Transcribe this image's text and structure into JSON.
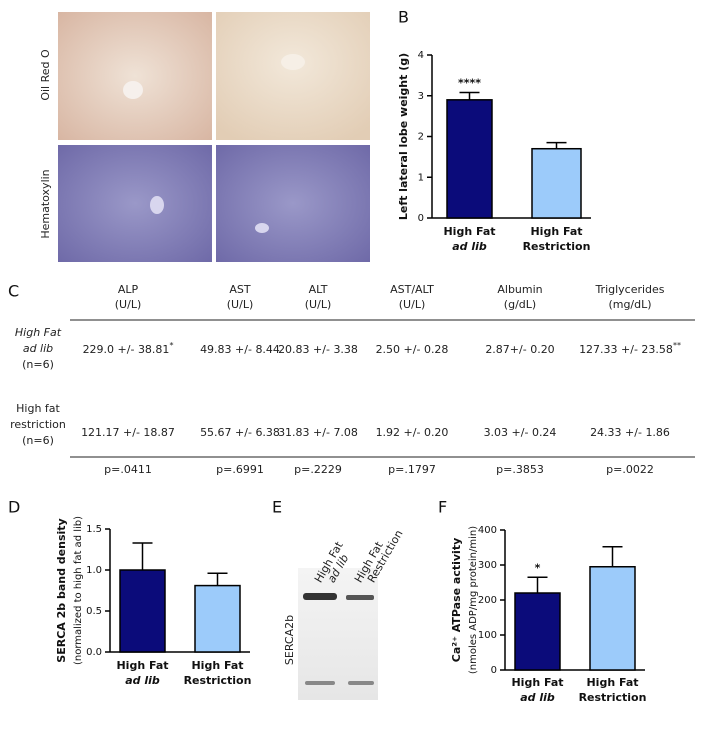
{
  "panels": [
    "B",
    "C",
    "D",
    "E",
    "F"
  ],
  "histology": {
    "rows": [
      "Oil Red O",
      "Hematoxylin"
    ]
  },
  "blot": {
    "lanes": [
      [
        "High Fat",
        "ad lib"
      ],
      [
        "High Fat",
        "Restriction"
      ]
    ],
    "protein": "SERCA2b"
  },
  "table": {
    "columns": [
      [
        "ALP",
        "(U/L)"
      ],
      [
        "AST",
        "(U/L)"
      ],
      [
        "ALT",
        "(U/L)"
      ],
      [
        "AST/ALT",
        "(U/L)"
      ],
      [
        "Albumin",
        "(g/dL)"
      ],
      [
        "Triglycerides",
        "(mg/dL)"
      ]
    ],
    "rows": [
      {
        "label": [
          "High Fat",
          "ad lib",
          "(n=6)"
        ],
        "cells": [
          {
            "text": "229.0 +/- 38.81",
            "sup": "*"
          },
          "49.83 +/- 8.44",
          "20.83 +/- 3.38",
          "2.50 +/- 0.28",
          "2.87+/- 0.20",
          {
            "text": "127.33 +/- 23.58",
            "sup": "**"
          }
        ]
      },
      {
        "label": [
          "High fat",
          "restriction",
          "(n=6)"
        ],
        "cells": [
          "121.17 +/- 18.87",
          "55.67 +/- 6.38",
          "31.83 +/- 7.08",
          "1.92 +/- 0.20",
          "3.03 +/- 0.24",
          "24.33 +/- 1.86"
        ]
      },
      {
        "cells": [
          "p=.0411",
          "p=.6991",
          "p=.2229",
          "p=.1797",
          "p=.3853",
          "p=.0022"
        ]
      }
    ]
  },
  "chart_data": [
    {
      "type": "bar",
      "ylabel": [
        "Left lateral lobe weight (g)"
      ],
      "categories": [
        [
          "High Fat",
          "ad lib"
        ],
        [
          "High Fat",
          "Restriction"
        ]
      ],
      "values": [
        2.9,
        1.7
      ],
      "errors": [
        0.18,
        0.15
      ],
      "colors": [
        "#0b0b7a",
        "#9ccbfa"
      ],
      "significance": [
        "****",
        null
      ],
      "ylim": [
        0,
        4
      ],
      "yticks": [
        0,
        1,
        2,
        3,
        4
      ]
    },
    {
      "type": "bar",
      "ylabel": [
        "SERCA 2b band density",
        "(normalized to high fat ad lib)"
      ],
      "categories": [
        [
          "High Fat",
          "ad lib"
        ],
        [
          "High Fat",
          "Restriction"
        ]
      ],
      "values": [
        1.0,
        0.81
      ],
      "errors": [
        0.33,
        0.15
      ],
      "colors": [
        "#0b0b7a",
        "#9ccbfa"
      ],
      "ylim": [
        0,
        1.5
      ],
      "yticks": [
        {
          "value": 0,
          "label": "0.0"
        },
        {
          "value": 0.5,
          "label": "0.5"
        },
        {
          "value": 1,
          "label": "1.0"
        },
        {
          "value": 1.5,
          "label": "1.5"
        }
      ]
    },
    {
      "type": "bar",
      "ylabel": [
        "Ca²⁺ ATPase activity",
        "(nmoles ADP/mg protein/min)"
      ],
      "categories": [
        [
          "High Fat",
          "ad lib"
        ],
        [
          "High Fat",
          "Restriction"
        ]
      ],
      "values": [
        220,
        295
      ],
      "errors": [
        45,
        57
      ],
      "colors": [
        "#0b0b7a",
        "#9ccbfa"
      ],
      "significance": [
        "*",
        null
      ],
      "ylim": [
        0,
        400
      ],
      "yticks": [
        0,
        100,
        200,
        300,
        400
      ]
    }
  ]
}
